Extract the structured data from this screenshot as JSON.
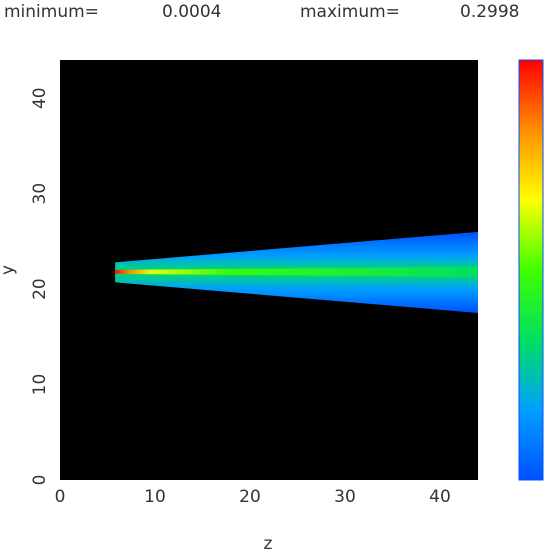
{
  "chart_data": {
    "type": "heatmap",
    "min_label": "minimum=",
    "min": "0.0004",
    "max_label": "maximum=",
    "max": "0.2998",
    "xlabel": "z",
    "ylabel": "y",
    "xlim": [
      0,
      44
    ],
    "ylim": [
      0,
      44
    ],
    "xticks": [
      0,
      10,
      20,
      30,
      40
    ],
    "yticks": [
      0,
      10,
      20,
      30,
      40
    ],
    "background": "#000000",
    "colorscale": [
      "#0050ff",
      "#00a0ff",
      "#00e060",
      "#40ff00",
      "#ffff00",
      "#ff9000",
      "#ff0000"
    ],
    "plume": {
      "z": [
        5.8,
        44
      ],
      "upper": [
        22.8,
        26
      ],
      "lower": [
        20.7,
        17.5
      ],
      "center": 21.8
    }
  }
}
